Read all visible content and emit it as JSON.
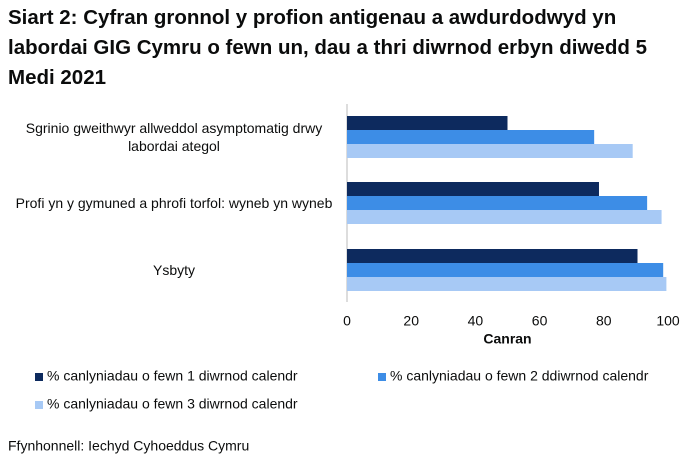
{
  "chart_data": {
    "type": "barh",
    "title": "Siart 2: Cyfran gronnol y profion antigenau a awdurdodwyd yn labordai GIG Cymru o fewn un, dau a thri diwrnod erbyn diwedd 5 Medi 2021",
    "categories": [
      "Sgrinio gweithwyr allweddol asymptomatig drwy labordai ategol",
      "Profi yn y gymuned a phrofi torfol: wyneb yn wyneb",
      "Ysbyty"
    ],
    "series": [
      {
        "name": "% canlyniadau o fewn 1 diwrnod calendr",
        "color": "#0d2a5e",
        "values": [
          50,
          78.5,
          90.5
        ]
      },
      {
        "name": "% canlyniadau o fewn 2 ddiwrnod calendr",
        "color": "#3d8de6",
        "values": [
          77,
          93.5,
          98.5
        ]
      },
      {
        "name": "% canlyniadau o fewn 3 diwrnod calendr",
        "color": "#a7c9f5",
        "values": [
          89,
          98,
          99.5
        ]
      }
    ],
    "xlabel": "Canran",
    "xlim": [
      0,
      100
    ],
    "xticks": [
      0,
      20,
      40,
      60,
      80,
      100
    ],
    "source": "Ffynhonnell: Iechyd Cyhoeddus Cymru"
  }
}
